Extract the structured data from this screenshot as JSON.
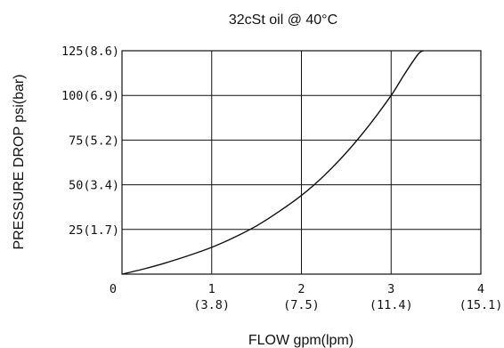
{
  "chart_data": {
    "type": "line",
    "title": "32cSt oil @ 40°C",
    "xlabel": "FLOW gpm(lpm)",
    "ylabel": "PRESSURE DROP psi(bar)",
    "xlim": [
      0,
      4
    ],
    "ylim": [
      0,
      125
    ],
    "grid": true,
    "x_ticks": [
      {
        "value": 0,
        "label": "0",
        "sublabel": ""
      },
      {
        "value": 1,
        "label": "1",
        "sublabel": "(3.8)"
      },
      {
        "value": 2,
        "label": "2",
        "sublabel": "(7.5)"
      },
      {
        "value": 3,
        "label": "3",
        "sublabel": "(11.4)"
      },
      {
        "value": 4,
        "label": "4",
        "sublabel": "(15.1)"
      }
    ],
    "y_ticks": [
      {
        "value": 25,
        "label": "25(1.7)"
      },
      {
        "value": 50,
        "label": "50(3.4)"
      },
      {
        "value": 75,
        "label": "75(5.2)"
      },
      {
        "value": 100,
        "label": "100(6.9)"
      },
      {
        "value": 125,
        "label": "125(8.6)"
      }
    ],
    "series": [
      {
        "color": "#111111",
        "x": [
          0,
          0.25,
          0.5,
          0.75,
          1,
          1.25,
          1.5,
          1.75,
          2,
          2.25,
          2.5,
          2.75,
          3,
          3.15,
          3.3,
          3.36
        ],
        "y": [
          0,
          3,
          6.5,
          10.5,
          15,
          20.5,
          27,
          35,
          44,
          55,
          68,
          83,
          100,
          112,
          123,
          125
        ]
      }
    ]
  }
}
